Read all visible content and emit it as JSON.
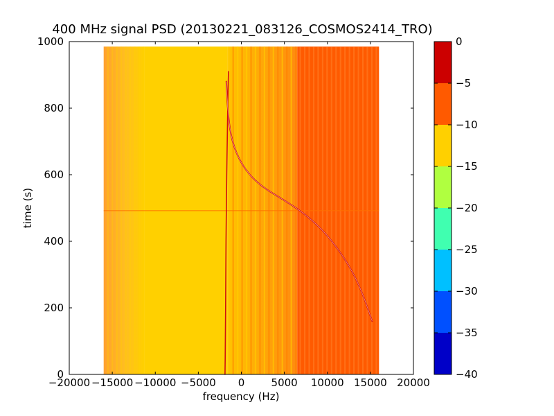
{
  "chart_data": {
    "type": "heatmap",
    "title": "400 MHz signal PSD (20130221_083126_COSMOS2414_TRO)",
    "xlabel": "frequency (Hz)",
    "ylabel": "time (s)",
    "xlim": [
      -20000,
      20000
    ],
    "ylim": [
      0,
      1000
    ],
    "x_ticks": [
      "−20000",
      "−15000",
      "−10000",
      "−5000",
      "0",
      "5000",
      "10000",
      "15000",
      "20000"
    ],
    "y_ticks": [
      "0",
      "200",
      "400",
      "600",
      "800",
      "1000"
    ],
    "data_extent": {
      "x": [
        -16000,
        16000
      ],
      "y": [
        0,
        985
      ]
    },
    "colorbar": {
      "range": [
        -40,
        0
      ],
      "levels": [
        -40,
        -35,
        -30,
        -25,
        -20,
        -15,
        -10,
        -5,
        0
      ],
      "tick_labels": [
        "−40",
        "−35",
        "−30",
        "−25",
        "−20",
        "−15",
        "−10",
        "−5",
        "0"
      ],
      "colors": [
        "#0000c8",
        "#0050ff",
        "#00c0ff",
        "#40ffb0",
        "#b0ff40",
        "#ffd000",
        "#ff5a00",
        "#cc0000"
      ]
    },
    "background_bands_x": [
      {
        "x": [
          -16000,
          -11300
        ],
        "level": "-10 to -15 (gradient from -10)"
      },
      {
        "x": [
          -11300,
          -1600
        ],
        "level": "-15 to -10"
      },
      {
        "x": [
          -1600,
          6500
        ],
        "level": "-15 to -10 with stripes of -10 to -5"
      },
      {
        "x": [
          6500,
          16000
        ],
        "level": "-10 to -5"
      }
    ],
    "horizontal_line_time": 492,
    "series": [
      {
        "x": [
          -1500,
          -1650,
          -1750,
          -1800,
          -1850,
          -1900
        ],
        "y": [
          910,
          700,
          500,
          300,
          100,
          0
        ]
      },
      {
        "x": [
          -1750,
          -1550,
          -1100,
          0,
          2000,
          5200,
          7500,
          10000,
          12500,
          14000,
          15200
        ],
        "y": [
          880,
          780,
          700,
          630,
          570,
          520,
          480,
          420,
          330,
          250,
          160
        ]
      }
    ]
  }
}
